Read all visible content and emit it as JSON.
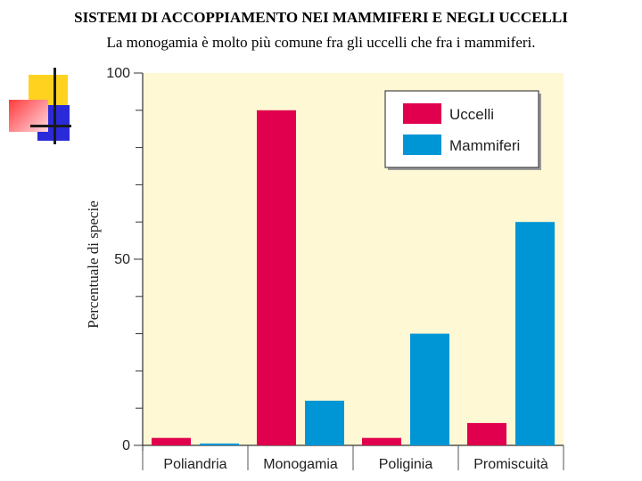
{
  "header": {
    "title": "SISTEMI DI ACCOPPIAMENTO NEI MAMMIFERI E NEGLI UCCELLI",
    "subtitle": "La monogamia è molto più comune fra gli uccelli che fra i mammiferi."
  },
  "chart_data": {
    "type": "bar",
    "title": "",
    "ylabel": "Percentuale di specie",
    "xlabel": "",
    "ylim": [
      0,
      100
    ],
    "yticks": [
      0,
      50,
      100
    ],
    "categories": [
      "Poliandria",
      "Monogamia",
      "Poliginia",
      "Promiscuità"
    ],
    "series": [
      {
        "name": "Uccelli",
        "color": "#e0004d",
        "values": [
          2,
          90,
          2,
          6
        ]
      },
      {
        "name": "Mammiferi",
        "color": "#0096d6",
        "values": [
          0.5,
          12,
          30,
          60
        ]
      }
    ],
    "legend": "top-right",
    "plot_background": "#fff8d4",
    "grid": false
  }
}
